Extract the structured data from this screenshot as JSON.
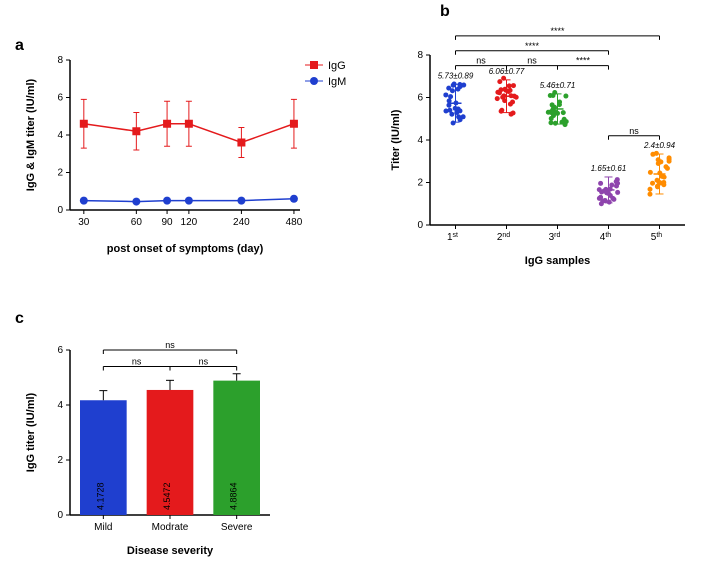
{
  "panelA": {
    "label": "a",
    "type": "line",
    "xlabel": "post onset of symptoms (day)",
    "ylabel": "IgG & IgM titer (IU/ml)",
    "x": [
      30,
      60,
      90,
      120,
      240,
      480
    ],
    "xlim": [
      20,
      500
    ],
    "ylim": [
      0,
      8
    ],
    "yticks": [
      0,
      2,
      4,
      6,
      8
    ],
    "legend": [
      {
        "name": "IgG",
        "color": "#e41a1c",
        "marker": "square"
      },
      {
        "name": "IgM",
        "color": "#1f3fcf",
        "marker": "circle"
      }
    ],
    "series": {
      "IgG": {
        "x": [
          30,
          60,
          90,
          120,
          240,
          480
        ],
        "y": [
          4.6,
          4.2,
          4.6,
          4.6,
          3.6,
          4.6
        ],
        "err": [
          1.3,
          1.0,
          1.2,
          1.2,
          0.8,
          1.3
        ],
        "color": "#e41a1c"
      },
      "IgM": {
        "x": [
          30,
          60,
          90,
          120,
          240,
          480
        ],
        "y": [
          0.5,
          0.45,
          0.5,
          0.5,
          0.5,
          0.6
        ],
        "err": [
          0.05,
          0.05,
          0.05,
          0.05,
          0.05,
          0.05
        ],
        "color": "#1f3fcf"
      }
    }
  },
  "panelB": {
    "label": "b",
    "type": "scatter",
    "xlabel": "IgG samples",
    "ylabel": "Titer (IU/ml)",
    "ylim": [
      0,
      8
    ],
    "yticks": [
      0,
      2,
      4,
      6,
      8
    ],
    "categories": [
      "1",
      "2",
      "3",
      "4",
      "5"
    ],
    "cat_suffix": [
      "st",
      "nd",
      "rd",
      "th",
      "th"
    ],
    "values": [
      "5.73±0.89",
      "6.06±0.77",
      "5.46±0.71",
      "1.65±0.61",
      "2.4±0.94"
    ],
    "means": [
      5.73,
      6.06,
      5.46,
      1.65,
      2.4
    ],
    "sds": [
      0.89,
      0.77,
      0.71,
      0.61,
      0.94
    ],
    "colors": [
      "#1f3fcf",
      "#e41a1c",
      "#2ca02c",
      "#8e44ad",
      "#ff8c00"
    ],
    "comparisons": [
      {
        "from": 0,
        "to": 1,
        "label": "ns",
        "y": 7.5
      },
      {
        "from": 1,
        "to": 2,
        "label": "ns",
        "y": 7.5
      },
      {
        "from": 2,
        "to": 3,
        "label": "****",
        "y": 7.5
      },
      {
        "from": 0,
        "to": 3,
        "label": "****",
        "y": 8.2
      },
      {
        "from": 3,
        "to": 4,
        "label": "ns",
        "y": 4.2
      },
      {
        "from": 0,
        "to": 4,
        "label": "****",
        "y": 8.9
      }
    ]
  },
  "panelC": {
    "label": "c",
    "type": "bar",
    "xlabel": "Disease severity",
    "ylabel": "IgG titer (IU/ml)",
    "ylim": [
      0,
      6
    ],
    "yticks": [
      0,
      2,
      4,
      6
    ],
    "categories": [
      "Mild",
      "Modrate",
      "Severe"
    ],
    "values": [
      4.1728,
      4.5472,
      4.8864
    ],
    "errors": [
      0.35,
      0.35,
      0.25
    ],
    "colors": [
      "#1f3fcf",
      "#e41a1c",
      "#2ca02c"
    ],
    "comparisons": [
      {
        "from": 0,
        "to": 1,
        "label": "ns",
        "y": 5.4
      },
      {
        "from": 1,
        "to": 2,
        "label": "ns",
        "y": 5.4
      },
      {
        "from": 0,
        "to": 2,
        "label": "ns",
        "y": 6.0
      }
    ],
    "value_labels": [
      "4.1728",
      "4.5472",
      "4.8864"
    ]
  }
}
